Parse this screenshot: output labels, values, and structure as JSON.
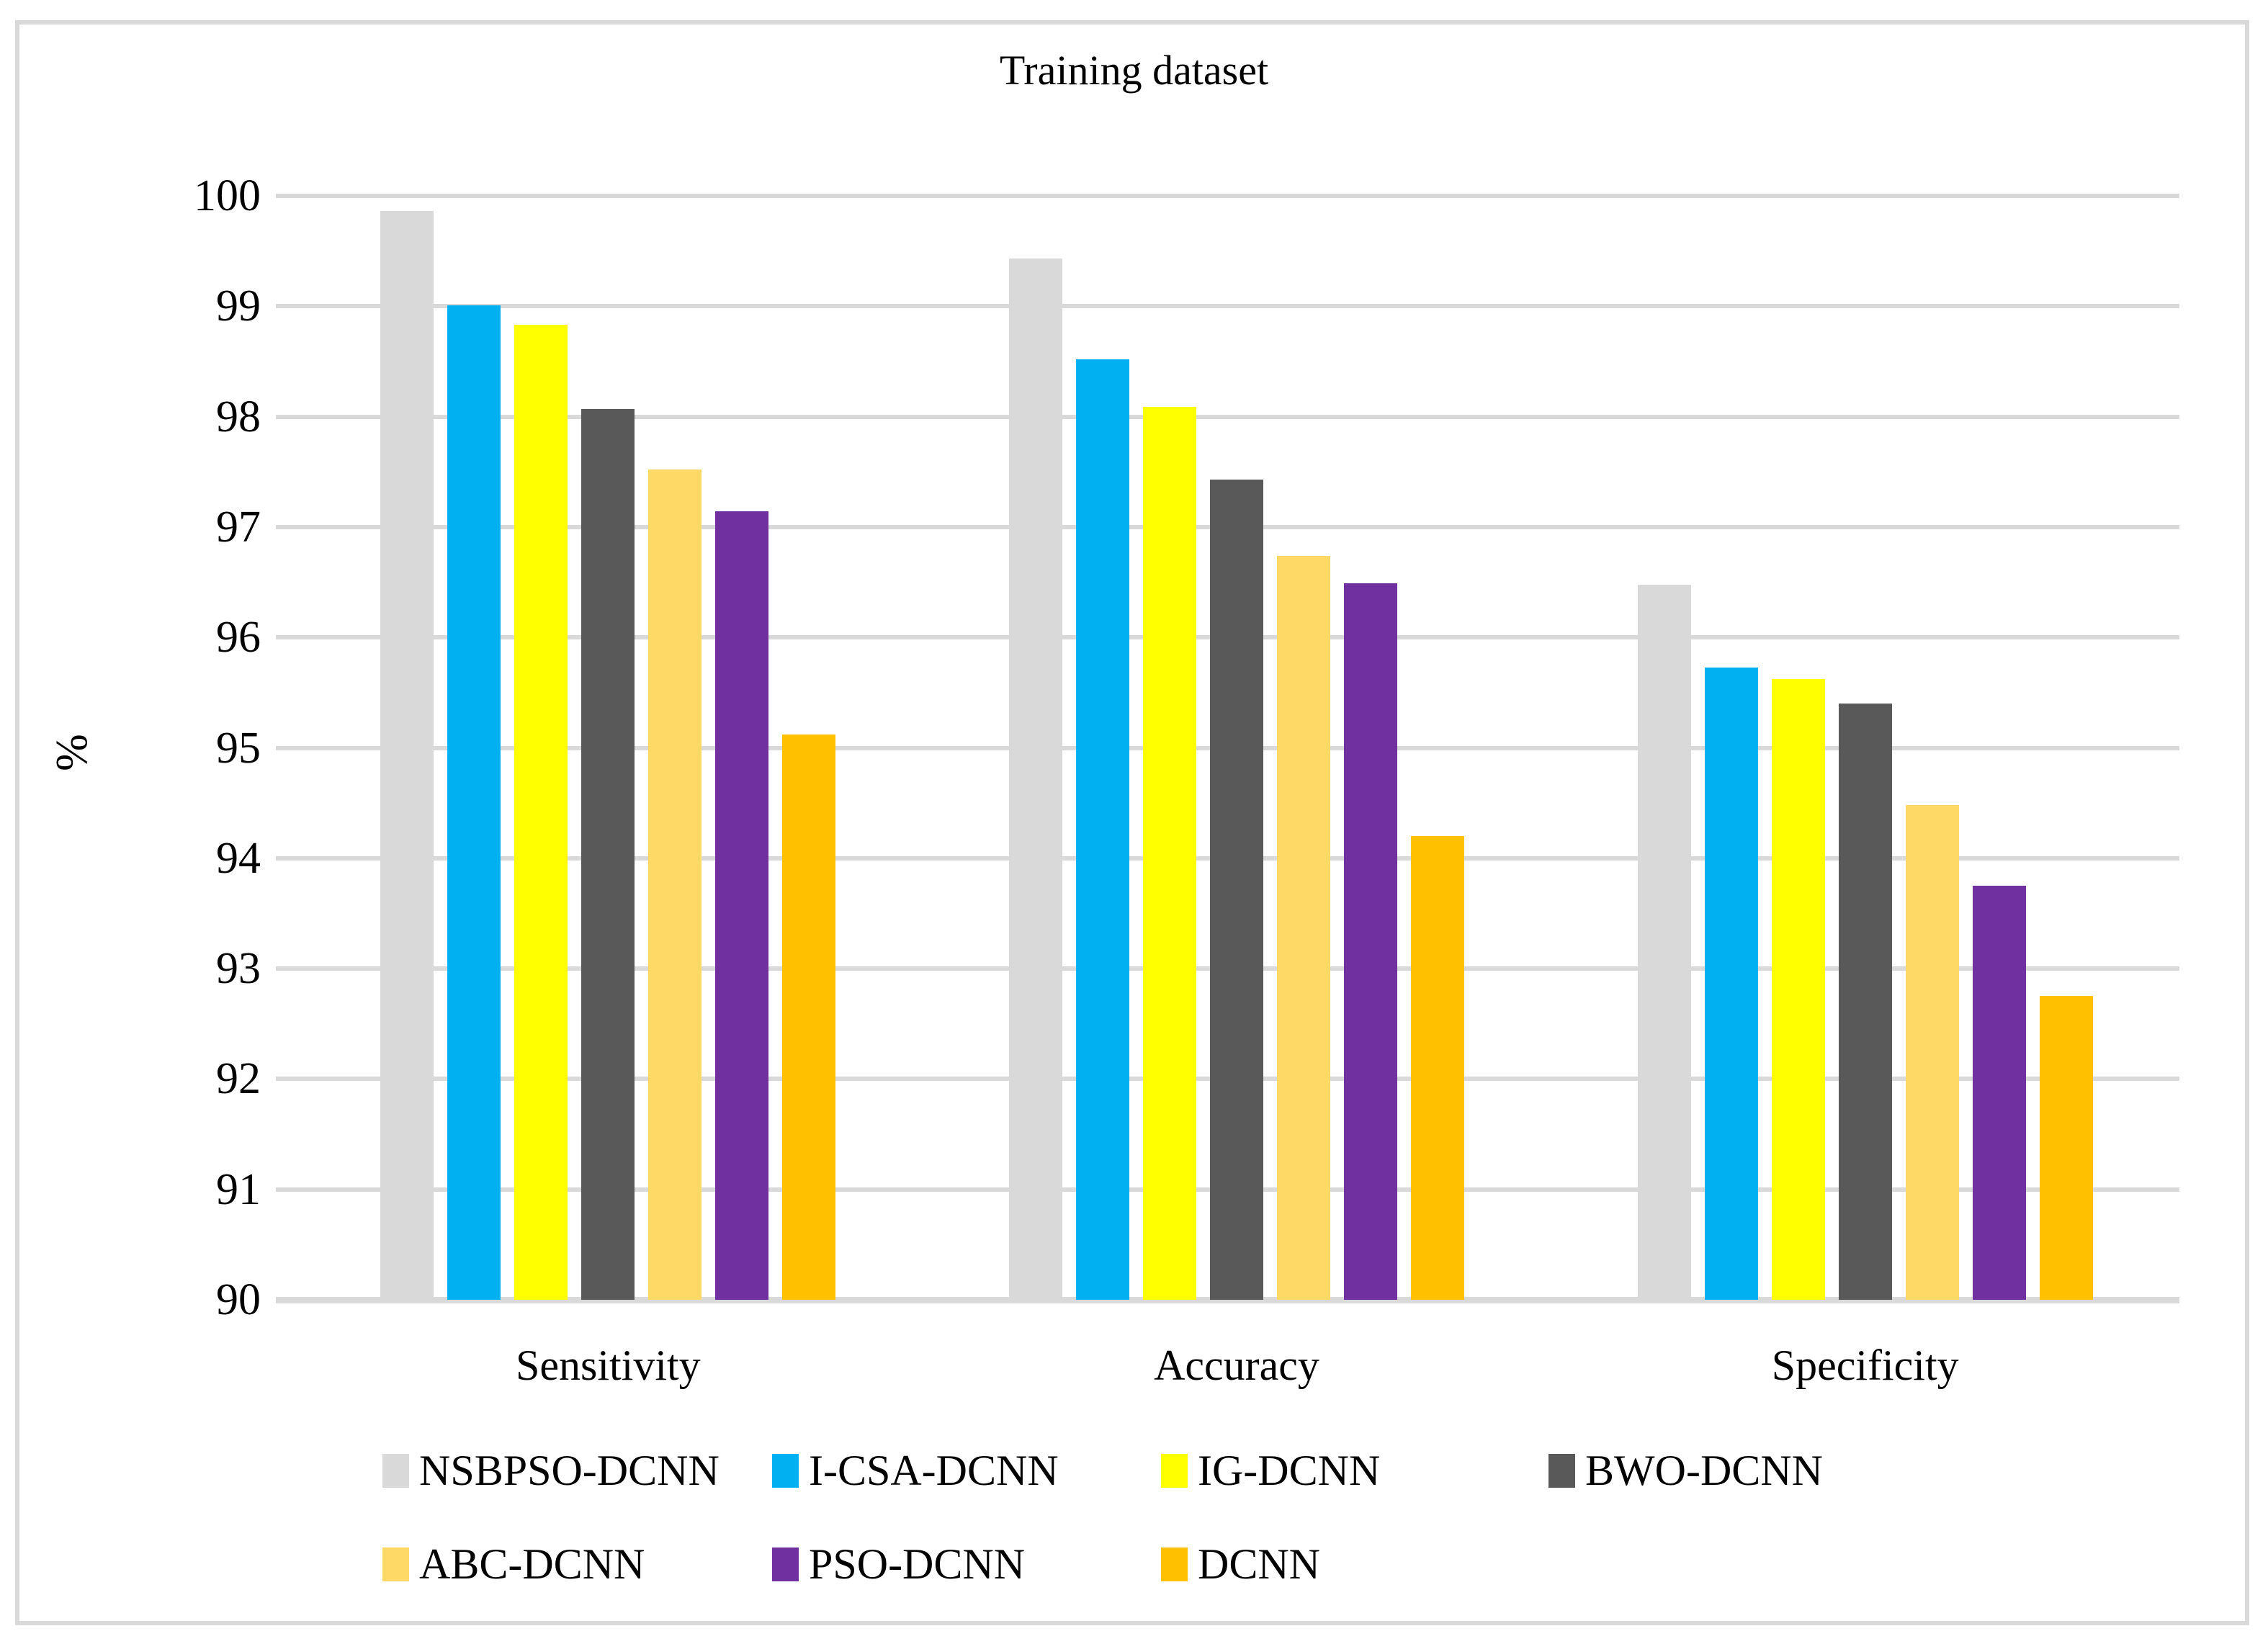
{
  "figure": {
    "title": "Training dataset",
    "y_axis_label": "%"
  },
  "chart_data": {
    "type": "bar",
    "title": "Training dataset",
    "xlabel": "",
    "ylabel": "%",
    "ylim": [
      90,
      100
    ],
    "ytick_step": 1,
    "yticks": [
      90,
      91,
      92,
      93,
      94,
      95,
      96,
      97,
      98,
      99,
      100
    ],
    "grid": true,
    "legend_position": "bottom",
    "categories": [
      "Sensitivity",
      "Accuracy",
      "Specificity"
    ],
    "series": [
      {
        "name": "NSBPSO-DCNN",
        "color": "#d9d9d9",
        "values": [
          99.86,
          99.43,
          96.48
        ]
      },
      {
        "name": "I-CSA-DCNN",
        "color": "#00b0f0",
        "values": [
          99.01,
          98.52,
          95.73
        ]
      },
      {
        "name": "IG-DCNN",
        "color": "#ffff00",
        "values": [
          98.83,
          98.09,
          95.62
        ]
      },
      {
        "name": "BWO-DCNN",
        "color": "#595959",
        "values": [
          98.07,
          97.43,
          95.4
        ]
      },
      {
        "name": "ABC-DCNN",
        "color": "#ffd966",
        "values": [
          97.52,
          96.74,
          94.48
        ]
      },
      {
        "name": "PSO-DCNN",
        "color": "#7030a0",
        "values": [
          97.14,
          96.49,
          93.75
        ]
      },
      {
        "name": "DCNN",
        "color": "#ffc000",
        "values": [
          95.12,
          94.2,
          92.75
        ]
      }
    ],
    "legend_rows": [
      [
        0,
        1,
        2,
        3
      ],
      [
        4,
        5,
        6
      ]
    ]
  },
  "style_colors": {
    "gridline": "#d9d9d9",
    "frame_border": "#d9d9d9",
    "text": "#000000",
    "background": "#ffffff"
  }
}
